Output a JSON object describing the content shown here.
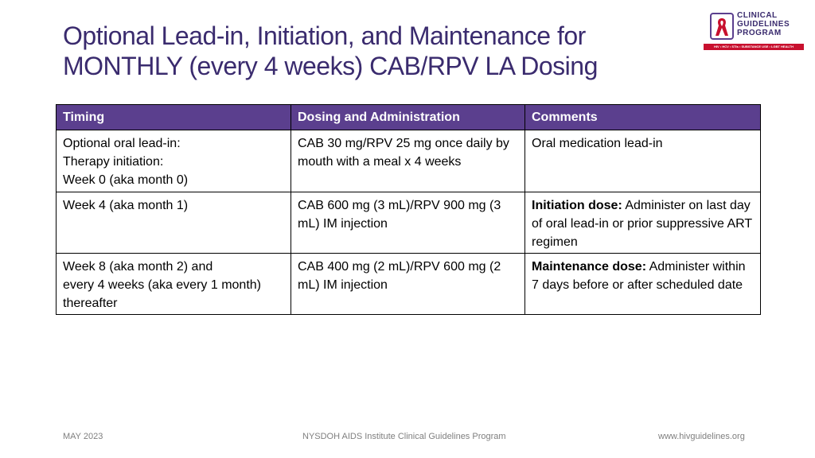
{
  "slide": {
    "title_line1": "Optional Lead-in, Initiation, and Maintenance for",
    "title_line2": "MONTHLY (every 4 weeks) CAB/RPV LA Dosing"
  },
  "logo": {
    "line1": "CLINICAL",
    "line2": "GUIDELINES",
    "line3": "PROGRAM",
    "tagline": "HIV • HCV • STIs • SUBSTANCE USE • LGBT HEALTH",
    "accent_color": "#c8102e",
    "brand_color": "#5b3f8e"
  },
  "table": {
    "headers": [
      "Timing",
      "Dosing and Administration",
      "Comments"
    ],
    "rows": [
      {
        "timing": [
          "Optional oral lead-in:",
          "Therapy initiation:",
          "Week 0 (aka month 0)"
        ],
        "dosing": "CAB 30 mg/RPV 25 mg once daily by mouth with a meal x 4 weeks",
        "comment_bold": "",
        "comment": "Oral medication lead-in"
      },
      {
        "timing": [
          "Week 4 (aka month 1)"
        ],
        "dosing": "CAB 600 mg (3 mL)/RPV 900 mg (3 mL) IM injection",
        "comment_bold": "Initiation dose:",
        "comment": " Administer on last day of oral lead-in or prior suppressive ART regimen"
      },
      {
        "timing": [
          "Week 8 (aka month 2) and",
          "every 4 weeks (aka every 1 month)",
          "thereafter"
        ],
        "dosing": "CAB 400 mg (2 mL)/RPV 600 mg (2 mL) IM injection",
        "comment_bold": "Maintenance dose:",
        "comment": " Administer within 7 days before or after scheduled date"
      }
    ]
  },
  "footer": {
    "date": "MAY 2023",
    "program": "NYSDOH AIDS Institute Clinical Guidelines Program",
    "url": "www.hivguidelines.org"
  }
}
